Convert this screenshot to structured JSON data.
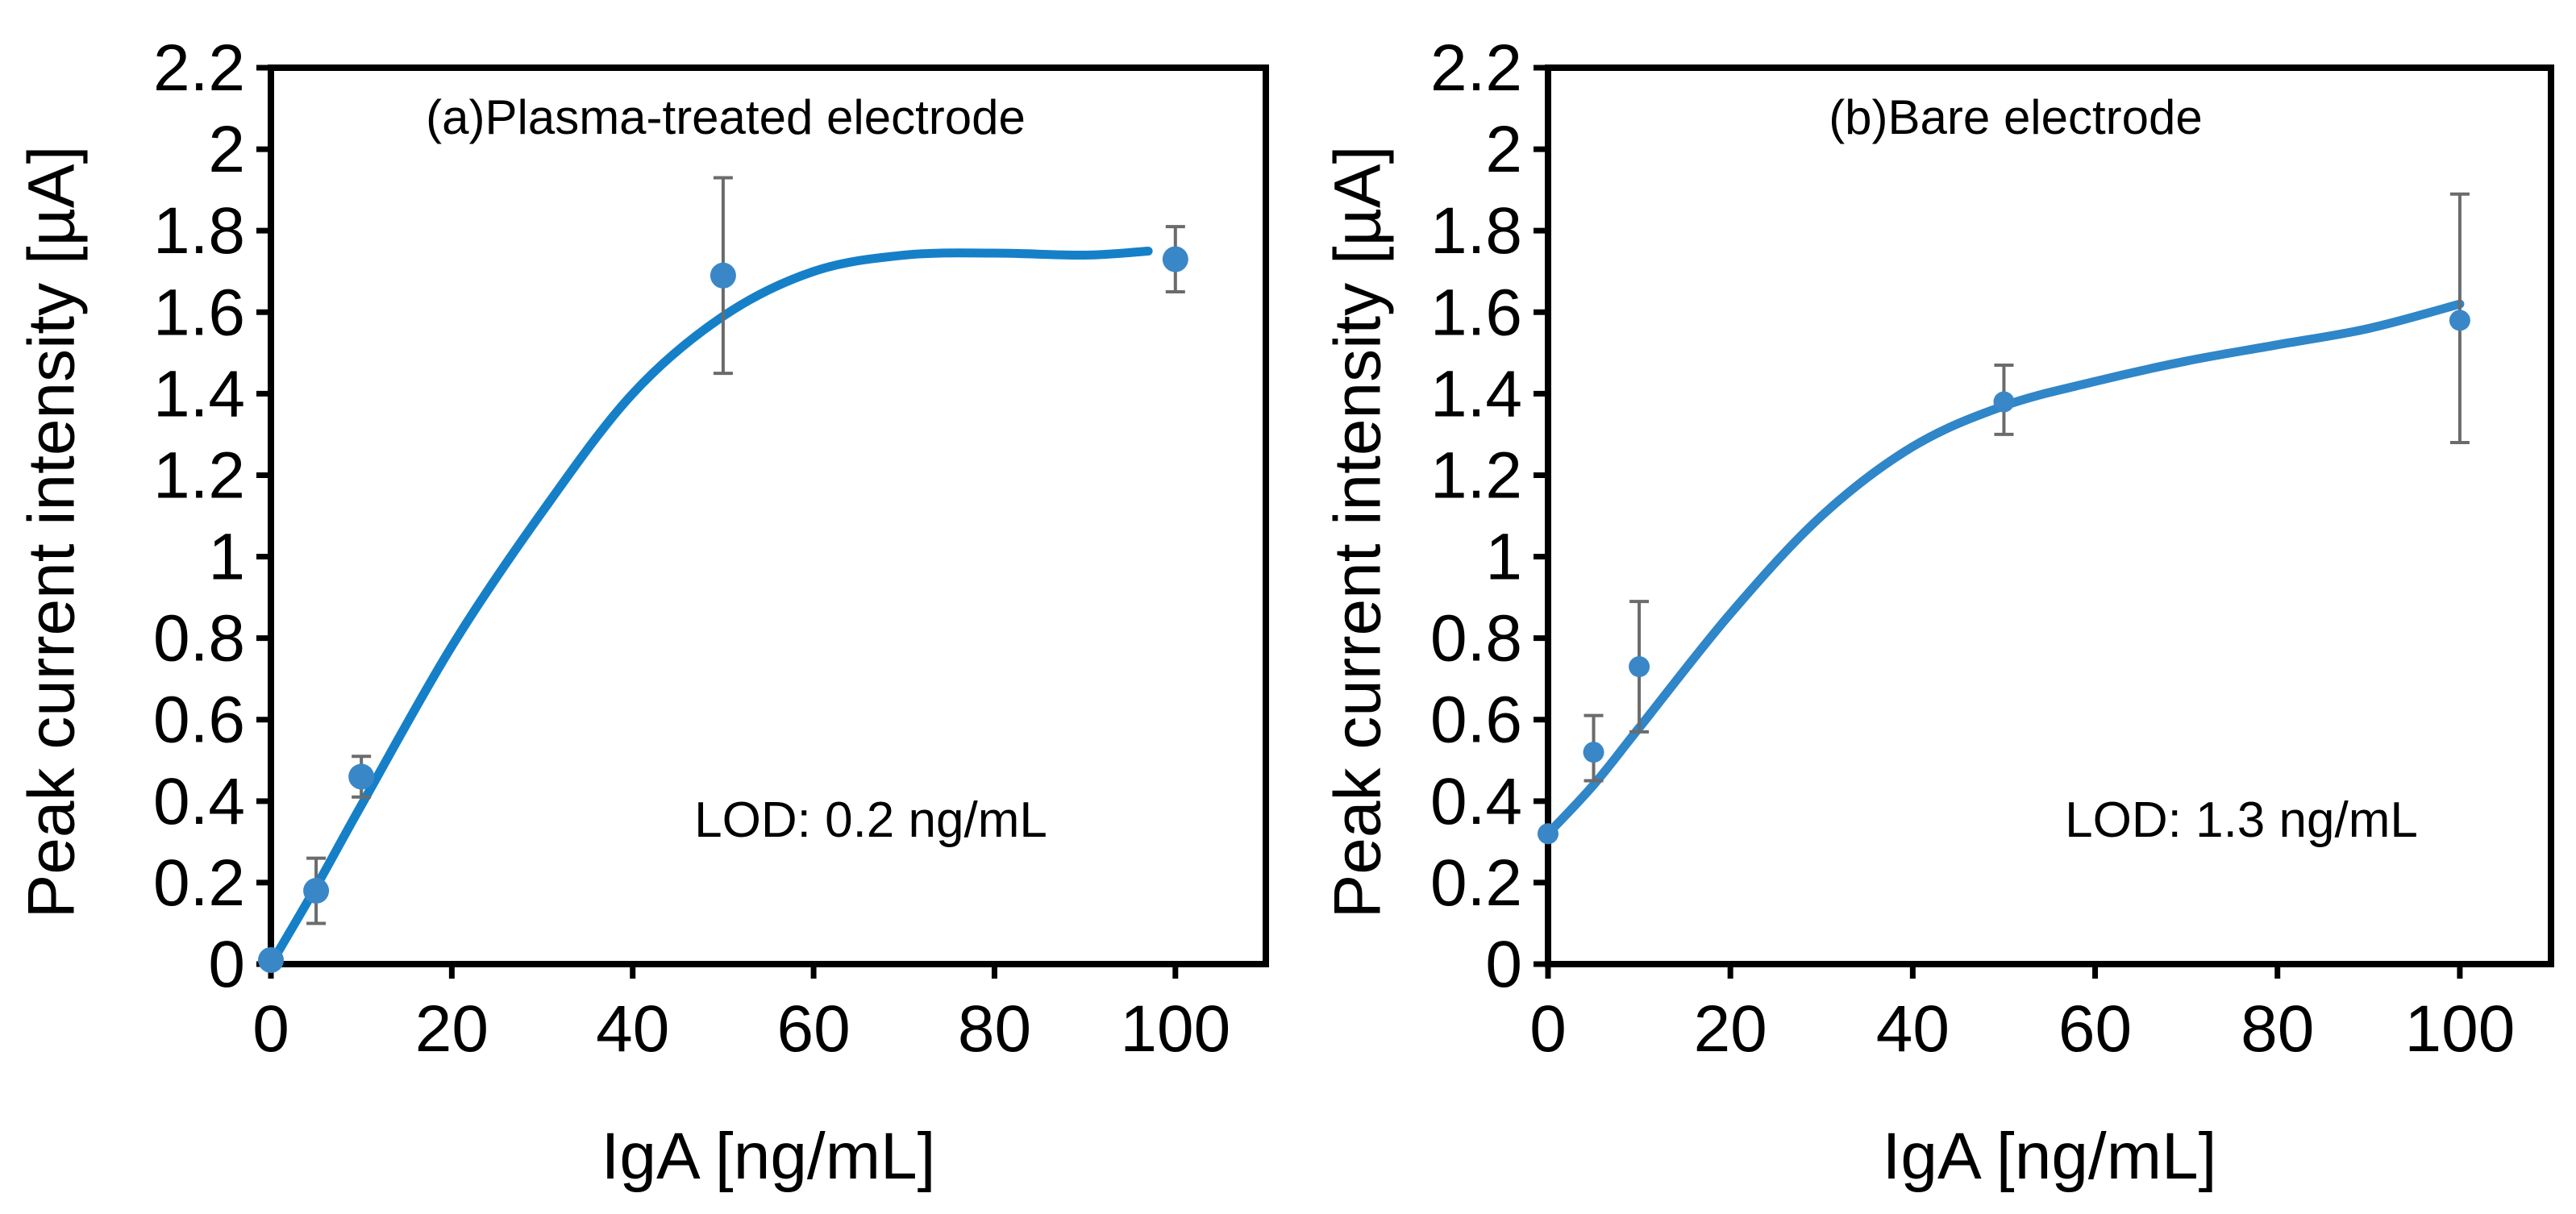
{
  "chart_data": [
    {
      "type": "scatter",
      "title": "(a)Plasma-treated electrode",
      "annotation": "LOD: 0.2 ng/mL",
      "xlabel": "IgA [ng/mL]",
      "ylabel": "Peak current intensity [µA]",
      "xlim": [
        0,
        110
      ],
      "ylim": [
        0,
        2.2
      ],
      "xticks": [
        "0",
        "20",
        "40",
        "60",
        "80",
        "100"
      ],
      "yticks": [
        "0",
        "0.2",
        "0.4",
        "0.6",
        "0.8",
        "1",
        "1.2",
        "1.4",
        "1.6",
        "1.8",
        "2",
        "2.2"
      ],
      "grid": false,
      "series": [
        {
          "x": [
            0,
            5,
            10,
            50,
            100
          ],
          "y": [
            0.01,
            0.18,
            0.46,
            1.69,
            1.73
          ],
          "err_low": [
            0.01,
            0.08,
            0.05,
            0.24,
            0.08
          ],
          "err_high": [
            0.01,
            0.08,
            0.05,
            0.24,
            0.08
          ],
          "color": "#3a87c8"
        }
      ],
      "fit_curve": {
        "x": [
          0,
          5,
          10,
          20,
          30,
          40,
          50,
          60,
          70,
          80,
          90,
          97
        ],
        "y": [
          0.0,
          0.19,
          0.39,
          0.78,
          1.11,
          1.4,
          1.59,
          1.7,
          1.74,
          1.745,
          1.74,
          1.75
        ],
        "color": "#1580c8"
      }
    },
    {
      "type": "scatter",
      "title": "(b)Bare electrode",
      "annotation": "LOD: 1.3 ng/mL",
      "xlabel": "IgA [ng/mL]",
      "ylabel": "Peak current intensity [µA]",
      "xlim": [
        0,
        110
      ],
      "ylim": [
        0,
        2.2
      ],
      "xticks": [
        "0",
        "20",
        "40",
        "60",
        "80",
        "100"
      ],
      "yticks": [
        "0",
        "0.2",
        "0.4",
        "0.6",
        "0.8",
        "1",
        "1.2",
        "1.4",
        "1.6",
        "1.8",
        "2",
        "2.2"
      ],
      "grid": false,
      "series": [
        {
          "x": [
            0,
            5,
            10,
            50,
            100
          ],
          "y": [
            0.32,
            0.52,
            0.73,
            1.38,
            1.58
          ],
          "err_low": [
            0.0,
            0.07,
            0.16,
            0.08,
            0.3
          ],
          "err_high": [
            0.0,
            0.09,
            0.16,
            0.09,
            0.31
          ],
          "color": "#3a87c8"
        }
      ],
      "fit_curve": {
        "x": [
          0,
          5,
          10,
          20,
          30,
          40,
          50,
          60,
          70,
          80,
          90,
          100
        ],
        "y": [
          0.32,
          0.44,
          0.58,
          0.86,
          1.1,
          1.27,
          1.37,
          1.43,
          1.48,
          1.52,
          1.56,
          1.62
        ],
        "color": "#2f86c8"
      }
    }
  ]
}
